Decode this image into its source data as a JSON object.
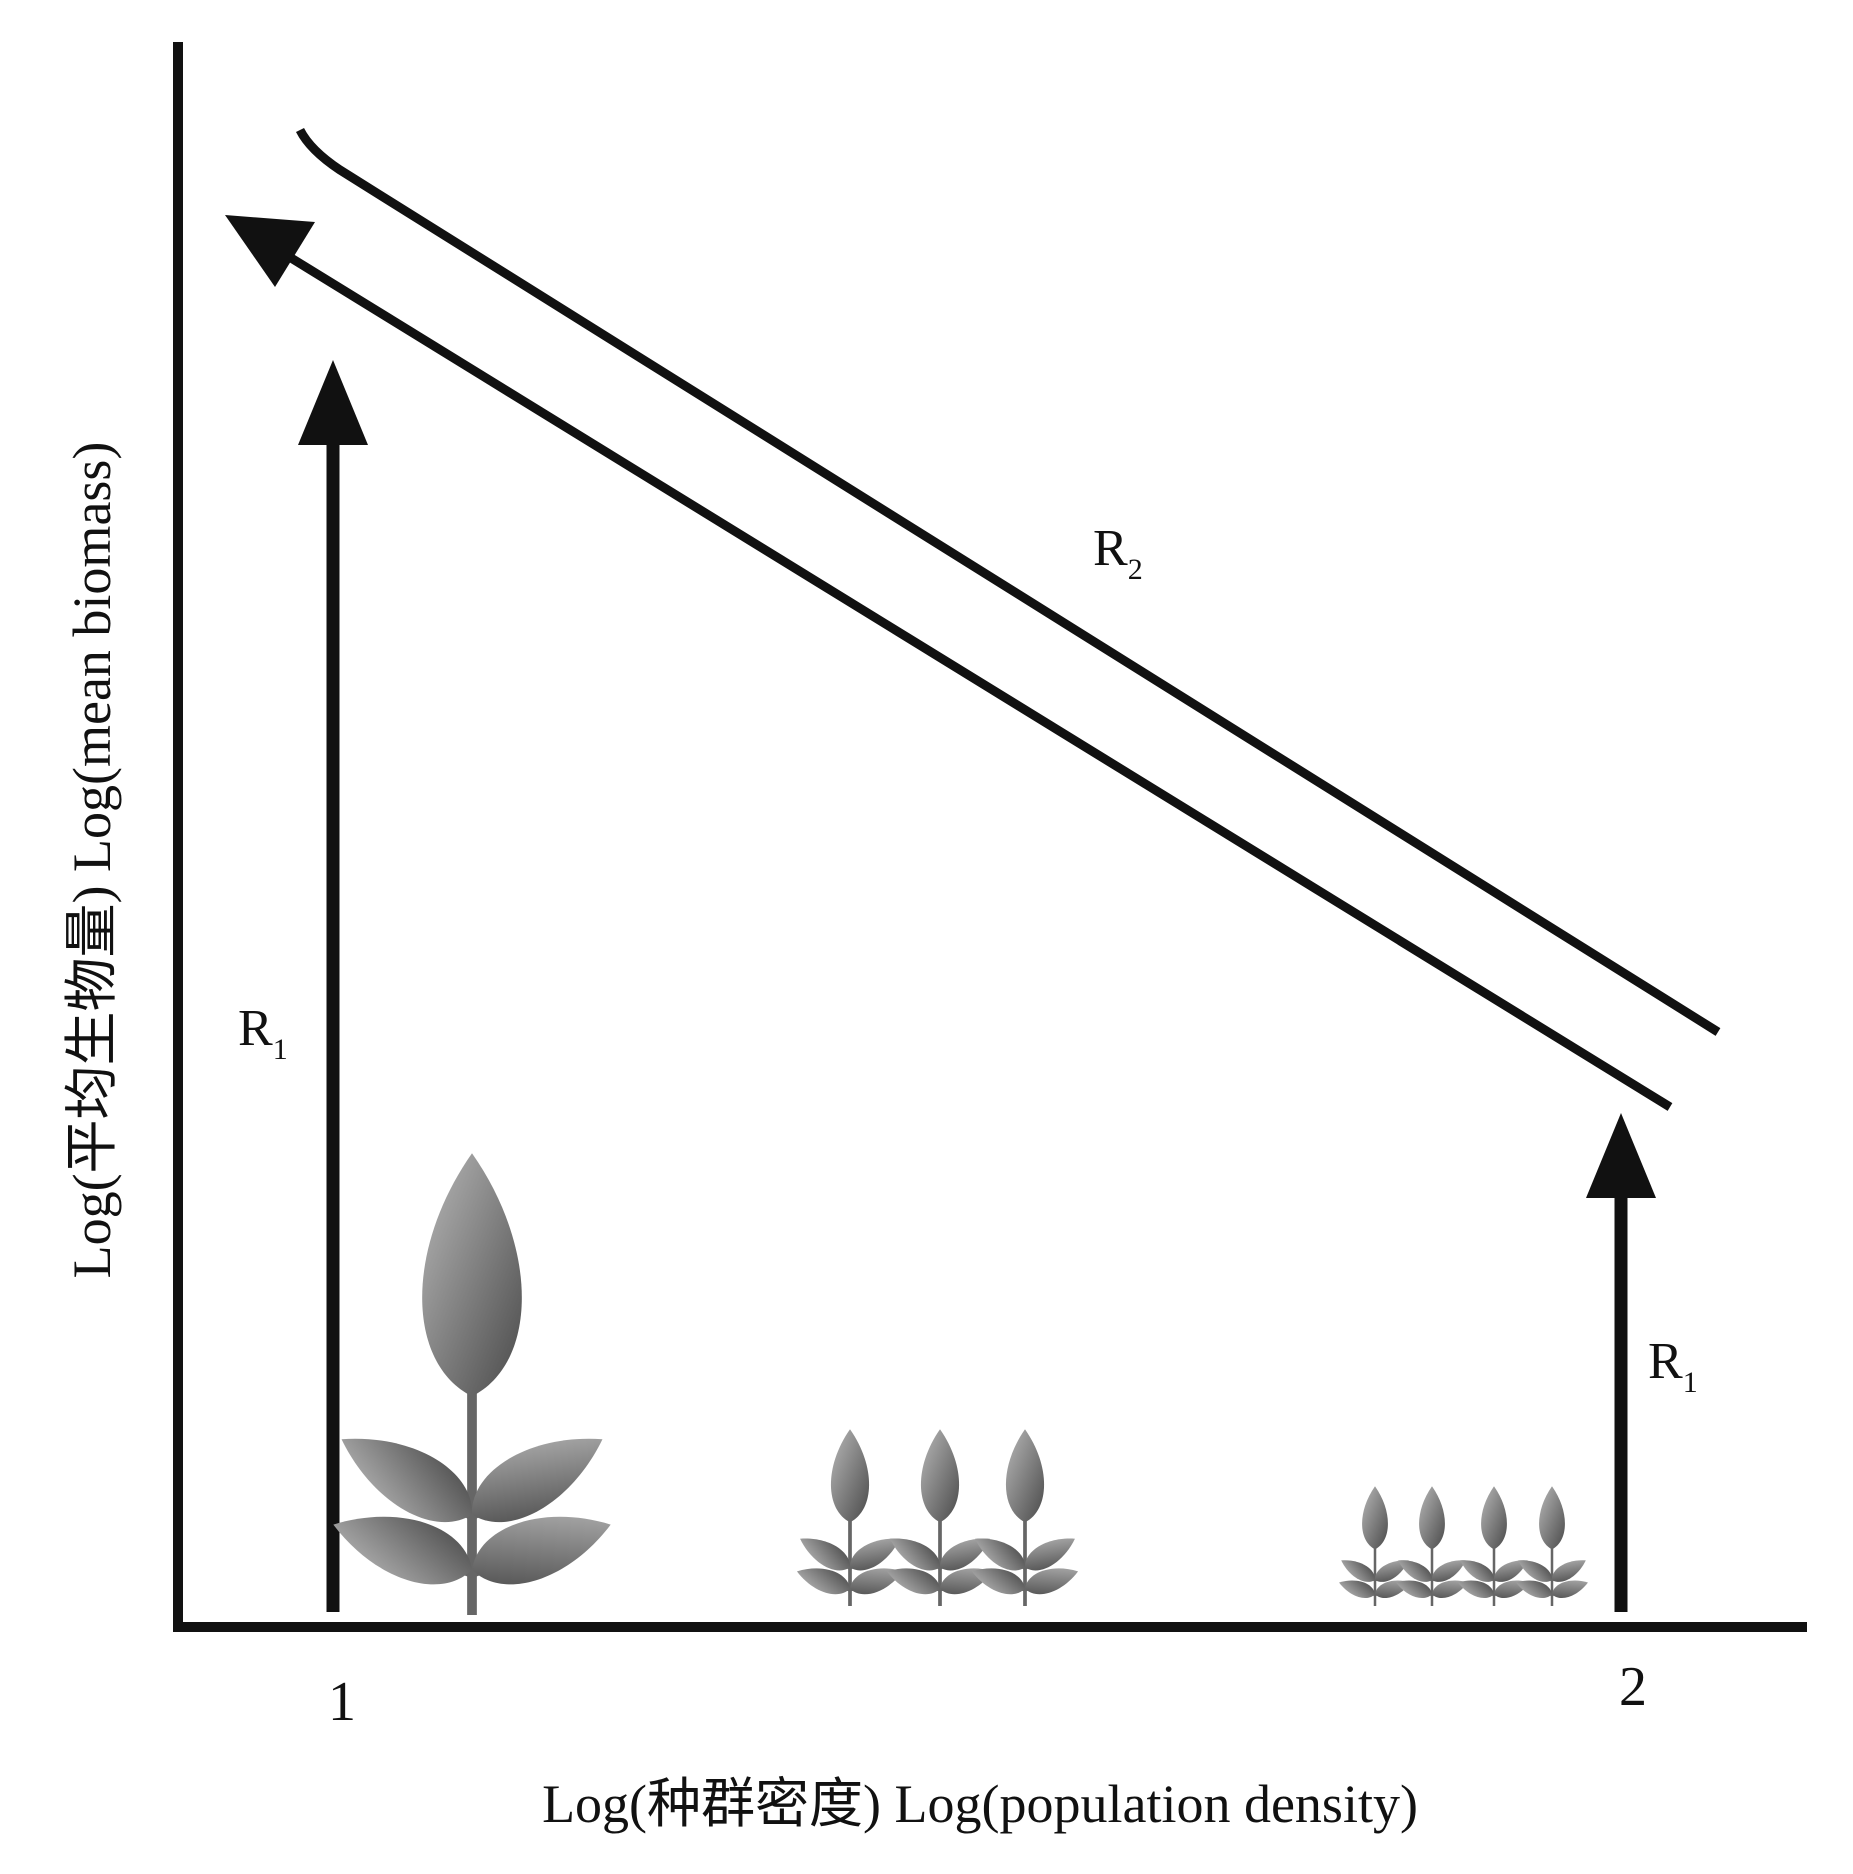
{
  "diagram": {
    "xlabel": "Log(种群密度)  Log(population density)",
    "ylabel": "Log(平均生物量)   Log(mean biomass)",
    "x_ticks": [
      "1",
      "2"
    ],
    "labels": {
      "r1_left": {
        "main": "R",
        "sub": "1"
      },
      "r1_right": {
        "main": "R",
        "sub": "1"
      },
      "r2": {
        "main": "R",
        "sub": "2"
      }
    },
    "colors": {
      "ink": "#111111",
      "plant_dark": "#555555",
      "plant_light": "#b0b0b0"
    }
  }
}
